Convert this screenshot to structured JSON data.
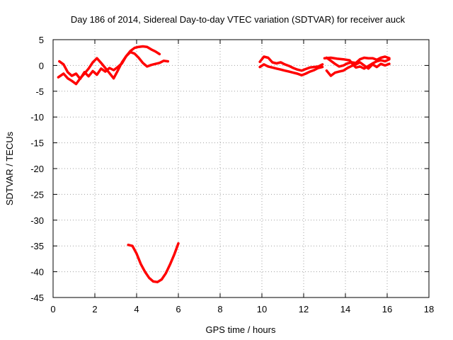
{
  "chart_data": {
    "type": "line",
    "title": "Day 186 of 2014, Sidereal Day-to-day VTEC variation (SDTVAR) for receiver auck",
    "xlabel": "GPS time / hours",
    "ylabel": "SDTVAR / TECUs",
    "xlim": [
      0,
      18
    ],
    "ylim": [
      -45,
      5
    ],
    "xticks": [
      0,
      2,
      4,
      6,
      8,
      10,
      12,
      14,
      16,
      18
    ],
    "yticks": [
      5,
      0,
      -5,
      -10,
      -15,
      -20,
      -25,
      -30,
      -35,
      -40,
      -45
    ],
    "grid": true,
    "color": "#ff0000",
    "series": [
      {
        "name": "trace-1",
        "points": [
          [
            0.3,
            0.8
          ],
          [
            0.5,
            0.2
          ],
          [
            0.7,
            -1.3
          ],
          [
            0.9,
            -2.0
          ],
          [
            1.1,
            -1.6
          ],
          [
            1.3,
            -2.6
          ],
          [
            1.5,
            -1.3
          ],
          [
            1.7,
            -2.1
          ],
          [
            1.9,
            -1.1
          ],
          [
            2.1,
            -1.8
          ],
          [
            2.3,
            -0.6
          ],
          [
            2.5,
            -1.2
          ],
          [
            2.7,
            -0.5
          ],
          [
            2.9,
            -0.9
          ],
          [
            3.1,
            -0.3
          ],
          [
            3.3,
            0.4
          ],
          [
            3.5,
            1.8
          ],
          [
            3.7,
            2.8
          ],
          [
            3.9,
            3.4
          ],
          [
            4.1,
            3.6
          ],
          [
            4.3,
            3.7
          ],
          [
            4.5,
            3.6
          ],
          [
            4.7,
            3.1
          ],
          [
            4.9,
            2.7
          ],
          [
            5.1,
            2.2
          ]
        ]
      },
      {
        "name": "trace-2",
        "points": [
          [
            0.25,
            -2.3
          ],
          [
            0.5,
            -1.6
          ],
          [
            0.7,
            -2.5
          ],
          [
            0.9,
            -3.0
          ],
          [
            1.1,
            -3.6
          ],
          [
            1.3,
            -2.5
          ],
          [
            1.5,
            -1.6
          ],
          [
            1.7,
            -0.6
          ],
          [
            1.9,
            0.6
          ],
          [
            2.1,
            1.4
          ],
          [
            2.3,
            0.5
          ],
          [
            2.5,
            -0.5
          ],
          [
            2.7,
            -1.5
          ],
          [
            2.9,
            -2.5
          ],
          [
            3.1,
            -1.0
          ],
          [
            3.3,
            0.6
          ],
          [
            3.5,
            1.8
          ],
          [
            3.7,
            2.6
          ],
          [
            3.9,
            2.3
          ],
          [
            4.1,
            1.5
          ],
          [
            4.3,
            0.5
          ],
          [
            4.5,
            -0.2
          ],
          [
            4.7,
            0.1
          ],
          [
            4.9,
            0.3
          ],
          [
            5.1,
            0.5
          ],
          [
            5.3,
            0.9
          ],
          [
            5.5,
            0.8
          ]
        ]
      },
      {
        "name": "trace-3",
        "points": [
          [
            3.6,
            -34.8
          ],
          [
            3.8,
            -35.0
          ],
          [
            4.0,
            -36.5
          ],
          [
            4.2,
            -38.5
          ],
          [
            4.4,
            -40.0
          ],
          [
            4.6,
            -41.2
          ],
          [
            4.8,
            -41.9
          ],
          [
            5.0,
            -42.0
          ],
          [
            5.2,
            -41.5
          ],
          [
            5.4,
            -40.3
          ],
          [
            5.6,
            -38.6
          ],
          [
            5.8,
            -36.7
          ],
          [
            6.0,
            -34.5
          ]
        ]
      },
      {
        "name": "trace-4",
        "points": [
          [
            9.9,
            0.7
          ],
          [
            10.1,
            1.7
          ],
          [
            10.3,
            1.5
          ],
          [
            10.5,
            0.6
          ],
          [
            10.7,
            0.4
          ],
          [
            10.9,
            0.6
          ],
          [
            11.1,
            0.2
          ],
          [
            11.3,
            -0.1
          ],
          [
            11.5,
            -0.5
          ],
          [
            11.7,
            -0.8
          ],
          [
            11.9,
            -1.0
          ],
          [
            12.1,
            -0.7
          ],
          [
            12.3,
            -0.4
          ],
          [
            12.5,
            -0.3
          ],
          [
            12.7,
            -0.2
          ],
          [
            12.9,
            0.2
          ]
        ]
      },
      {
        "name": "trace-5",
        "points": [
          [
            9.9,
            -0.3
          ],
          [
            10.1,
            0.2
          ],
          [
            10.3,
            -0.2
          ],
          [
            10.5,
            -0.4
          ],
          [
            10.7,
            -0.6
          ],
          [
            10.9,
            -0.8
          ],
          [
            11.1,
            -1.0
          ],
          [
            11.3,
            -1.2
          ],
          [
            11.5,
            -1.4
          ],
          [
            11.7,
            -1.6
          ],
          [
            11.9,
            -1.9
          ],
          [
            12.1,
            -1.6
          ],
          [
            12.3,
            -1.2
          ],
          [
            12.5,
            -0.9
          ],
          [
            12.7,
            -0.5
          ],
          [
            12.9,
            -0.3
          ]
        ]
      },
      {
        "name": "trace-6",
        "points": [
          [
            13.1,
            1.5
          ],
          [
            13.3,
            0.9
          ],
          [
            13.5,
            0.3
          ],
          [
            13.7,
            -0.2
          ],
          [
            13.9,
            0.0
          ],
          [
            14.1,
            0.4
          ],
          [
            14.3,
            0.6
          ],
          [
            14.5,
            0.5
          ],
          [
            14.7,
            1.2
          ],
          [
            14.9,
            1.5
          ],
          [
            15.1,
            1.4
          ],
          [
            15.3,
            1.4
          ],
          [
            15.5,
            1.1
          ],
          [
            15.7,
            1.5
          ],
          [
            15.9,
            1.7
          ],
          [
            16.1,
            1.4
          ]
        ]
      },
      {
        "name": "trace-7",
        "points": [
          [
            13.1,
            -1.0
          ],
          [
            13.3,
            -2.0
          ],
          [
            13.5,
            -1.4
          ],
          [
            13.7,
            -1.2
          ],
          [
            13.9,
            -1.0
          ],
          [
            14.1,
            -0.5
          ],
          [
            14.3,
            -0.1
          ],
          [
            14.5,
            0.2
          ],
          [
            14.7,
            0.6
          ],
          [
            14.9,
            0.0
          ],
          [
            15.1,
            -0.6
          ],
          [
            15.3,
            0.2
          ],
          [
            15.5,
            -0.3
          ],
          [
            15.7,
            0.3
          ],
          [
            15.9,
            0.0
          ],
          [
            16.1,
            0.3
          ]
        ]
      },
      {
        "name": "trace-8",
        "points": [
          [
            13.0,
            1.4
          ],
          [
            13.3,
            1.5
          ],
          [
            13.6,
            1.3
          ],
          [
            13.9,
            1.2
          ],
          [
            14.2,
            1.0
          ],
          [
            14.4,
            0.0
          ],
          [
            14.5,
            -0.4
          ],
          [
            14.7,
            -0.2
          ],
          [
            14.9,
            -0.6
          ],
          [
            15.1,
            -0.1
          ],
          [
            15.3,
            0.4
          ],
          [
            15.5,
            0.8
          ],
          [
            15.7,
            1.0
          ],
          [
            15.9,
            0.8
          ],
          [
            16.1,
            1.2
          ]
        ]
      }
    ]
  }
}
